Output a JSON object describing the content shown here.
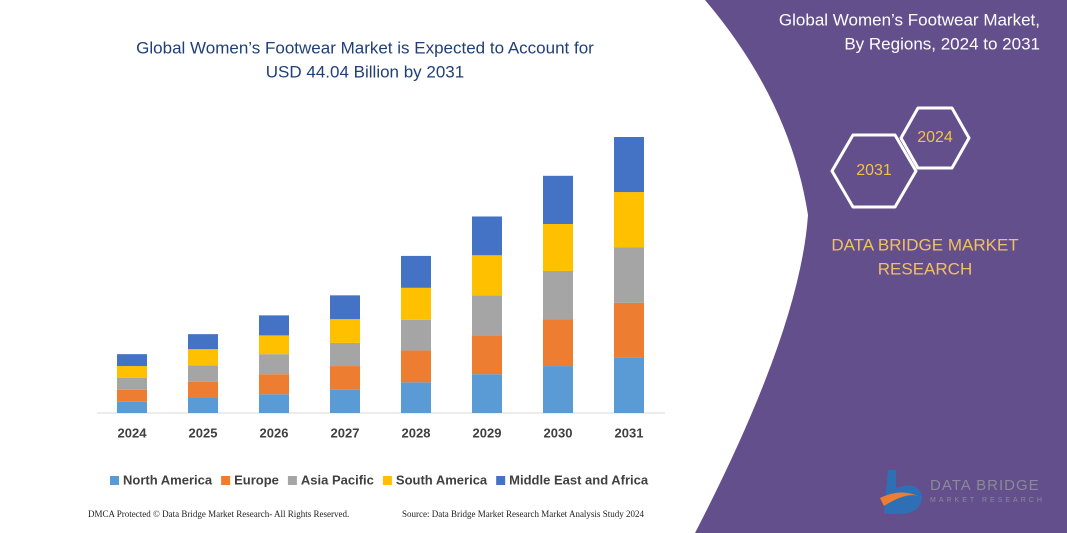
{
  "chart_data": {
    "type": "stacked_bar",
    "title": [
      "Global Women’s Footwear Market is Expected to Account for",
      "USD 44.04 Billion by 2031"
    ],
    "categories": [
      "2024",
      "2025",
      "2026",
      "2027",
      "2028",
      "2029",
      "2030",
      "2031"
    ],
    "series": [
      {
        "name": "North America",
        "color": "#5b9bd5",
        "values": [
          1.8,
          2.4,
          3.0,
          3.7,
          4.9,
          6.2,
          7.5,
          8.8
        ]
      },
      {
        "name": "Europe",
        "color": "#ed7d31",
        "values": [
          1.9,
          2.6,
          3.2,
          3.8,
          5.1,
          6.2,
          7.5,
          8.8
        ]
      },
      {
        "name": "Asia Pacific",
        "color": "#a5a5a5",
        "values": [
          1.9,
          2.6,
          3.2,
          3.7,
          4.9,
          6.4,
          7.7,
          8.9
        ]
      },
      {
        "name": "South America",
        "color": "#ffc000",
        "values": [
          1.9,
          2.6,
          3.0,
          3.8,
          5.1,
          6.4,
          7.5,
          8.8
        ]
      },
      {
        "name": "Middle East and Africa",
        "color": "#4472c4",
        "values": [
          1.9,
          2.4,
          3.2,
          3.8,
          5.1,
          6.2,
          7.7,
          8.8
        ]
      }
    ],
    "legend": "bottom"
  },
  "panel": {
    "title": [
      "Global Women’s Footwear Market,",
      "By Regions, 2024 to 2031"
    ],
    "hexagons": [
      "2024",
      "2031"
    ],
    "brand": [
      "DATA BRIDGE MARKET",
      "RESEARCH"
    ]
  },
  "logo": {
    "name": "DATA BRIDGE",
    "tagline": "MARKET RESEARCH"
  },
  "footer": {
    "left": "DMCA Protected © Data Bridge Market Research- All Rights Reserved.",
    "right": "Source: Data Bridge Market Research Market Analysis Study 2024"
  }
}
